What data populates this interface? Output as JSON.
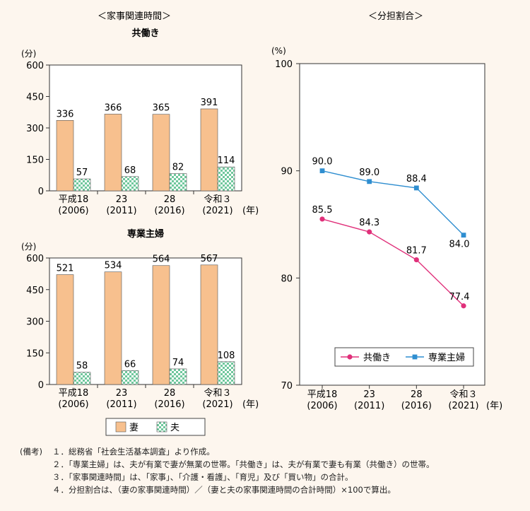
{
  "left_panel": {
    "heading": "＜家事関連時間＞",
    "unit": "(分)",
    "year_suffix": "(年)",
    "legend": [
      {
        "name": "妻",
        "color": "#f7c08e"
      },
      {
        "name": "夫",
        "color": "#8fd3b0"
      }
    ]
  },
  "right_panel": {
    "heading": "＜分担割合＞",
    "unit": "(%)",
    "year_suffix": "(年)"
  },
  "chart_data": [
    {
      "type": "bar",
      "title": "共働き",
      "categories": [
        [
          "平成18",
          "(2006)"
        ],
        [
          "23",
          "(2011)"
        ],
        [
          "28",
          "(2016)"
        ],
        [
          "令和３",
          "(2021)"
        ]
      ],
      "series": [
        {
          "name": "妻",
          "values": [
            336,
            366,
            365,
            391
          ]
        },
        {
          "name": "夫",
          "values": [
            57,
            68,
            82,
            114
          ]
        }
      ],
      "ylim": [
        0,
        600
      ],
      "yticks": [
        0,
        150,
        300,
        450,
        600
      ]
    },
    {
      "type": "bar",
      "title": "専業主婦",
      "categories": [
        [
          "平成18",
          "(2006)"
        ],
        [
          "23",
          "(2011)"
        ],
        [
          "28",
          "(2016)"
        ],
        [
          "令和３",
          "(2021)"
        ]
      ],
      "series": [
        {
          "name": "妻",
          "values": [
            521,
            534,
            564,
            567
          ]
        },
        {
          "name": "夫",
          "values": [
            58,
            66,
            74,
            108
          ]
        }
      ],
      "ylim": [
        0,
        600
      ],
      "yticks": [
        0,
        150,
        300,
        450,
        600
      ]
    },
    {
      "type": "line",
      "title": "",
      "categories": [
        [
          "平成18",
          "(2006)"
        ],
        [
          "23",
          "(2011)"
        ],
        [
          "28",
          "(2016)"
        ],
        [
          "令和３",
          "(2021)"
        ]
      ],
      "series": [
        {
          "name": "共働き",
          "values": [
            85.5,
            84.3,
            81.7,
            77.4
          ],
          "color": "#e0307a",
          "marker": "circle"
        },
        {
          "name": "専業主婦",
          "values": [
            90.0,
            89.0,
            88.4,
            84.0
          ],
          "color": "#2f8ed0",
          "marker": "square"
        }
      ],
      "ylim": [
        70,
        100
      ],
      "yticks": [
        70,
        80,
        90,
        100
      ],
      "legend_position": "bottom-right"
    }
  ],
  "notes": [
    {
      "head": "(備考)",
      "text": "１．総務省「社会生活基本調査」より作成。"
    },
    {
      "head": "",
      "text": "２．「専業主婦」は、夫が有業で妻が無業の世帯。「共働き」は、夫が有業で妻も有業（共働き）の世帯。"
    },
    {
      "head": "",
      "text": "３．「家事関連時間」は、「家事」、「介護・看護」、「育児」及び「買い物」の合計。"
    },
    {
      "head": "",
      "text": "４．分担割合は、（妻の家事関連時間）／（妻と夫の家事関連時間の合計時間）×100で算出。"
    }
  ]
}
